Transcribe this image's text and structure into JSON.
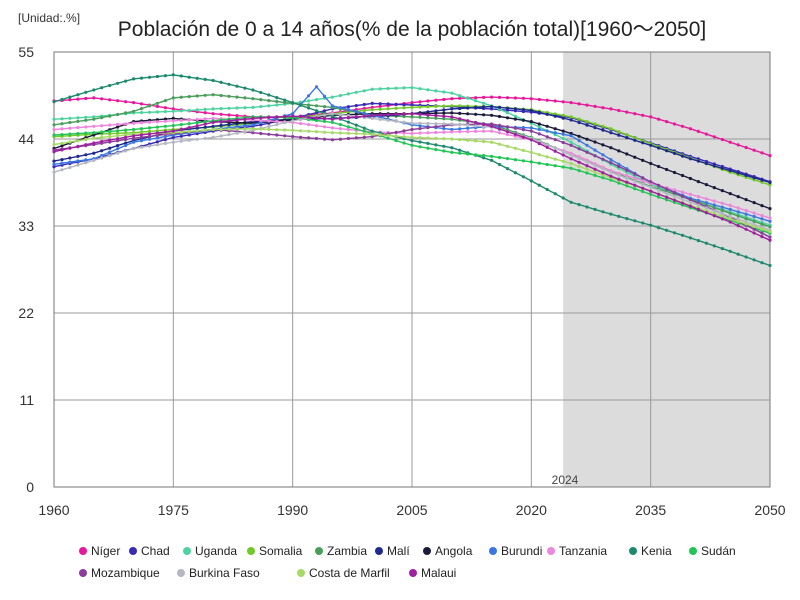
{
  "chart_data": {
    "type": "line",
    "title": "Población de 0 a 14 años(% de la población total)[1960～2050]",
    "unit_label": "[Unidad:.%]",
    "xlim": [
      1960,
      2050
    ],
    "ylim": [
      0,
      55
    ],
    "x_ticks": [
      "1960",
      "1975",
      "1990",
      "2005",
      "2020",
      "2035",
      "2050"
    ],
    "y_ticks": [
      "0",
      "11",
      "22",
      "33",
      "44",
      "55"
    ],
    "x_tick_values": [
      1960,
      1975,
      1990,
      2005,
      2020,
      2035,
      2050
    ],
    "y_tick_values": [
      0,
      11,
      22,
      33,
      44,
      55
    ],
    "forecast_start": 2024,
    "forecast_label": "2024",
    "legend_position": "bottom",
    "grid": true,
    "series": [
      {
        "name": "Níger",
        "color": "#e6199b",
        "points": [
          [
            1960,
            48.8
          ],
          [
            1965,
            49.2
          ],
          [
            1970,
            48.6
          ],
          [
            1975,
            47.8
          ],
          [
            1980,
            47.2
          ],
          [
            1985,
            46.8
          ],
          [
            1990,
            46.8
          ],
          [
            1995,
            47.3
          ],
          [
            2000,
            48.0
          ],
          [
            2005,
            48.6
          ],
          [
            2010,
            49.1
          ],
          [
            2015,
            49.3
          ],
          [
            2020,
            49.1
          ],
          [
            2025,
            48.6
          ],
          [
            2030,
            47.8
          ],
          [
            2035,
            46.8
          ],
          [
            2040,
            45.3
          ],
          [
            2045,
            43.6
          ],
          [
            2050,
            41.9
          ]
        ]
      },
      {
        "name": "Chad",
        "color": "#3a2ab5",
        "points": [
          [
            1960,
            40.5
          ],
          [
            1965,
            41.5
          ],
          [
            1970,
            42.8
          ],
          [
            1975,
            44.2
          ],
          [
            1980,
            45.0
          ],
          [
            1985,
            45.6
          ],
          [
            1990,
            46.6
          ],
          [
            1995,
            47.8
          ],
          [
            2000,
            48.5
          ],
          [
            2005,
            48.3
          ],
          [
            2010,
            48.1
          ],
          [
            2015,
            47.8
          ],
          [
            2020,
            47.4
          ],
          [
            2025,
            46.7
          ],
          [
            2030,
            45.2
          ],
          [
            2035,
            43.5
          ],
          [
            2040,
            41.8
          ],
          [
            2045,
            40.2
          ],
          [
            2050,
            38.6
          ]
        ]
      },
      {
        "name": "Uganda",
        "color": "#4dd3a0",
        "points": [
          [
            1960,
            46.5
          ],
          [
            1965,
            46.8
          ],
          [
            1970,
            47.3
          ],
          [
            1975,
            47.5
          ],
          [
            1980,
            47.8
          ],
          [
            1985,
            48.0
          ],
          [
            1990,
            48.5
          ],
          [
            1995,
            49.3
          ],
          [
            2000,
            50.3
          ],
          [
            2005,
            50.5
          ],
          [
            2010,
            49.8
          ],
          [
            2015,
            48.2
          ],
          [
            2020,
            46.0
          ],
          [
            2025,
            43.6
          ],
          [
            2030,
            40.8
          ],
          [
            2035,
            38.3
          ],
          [
            2040,
            36.3
          ],
          [
            2045,
            34.8
          ],
          [
            2050,
            33.1
          ]
        ]
      },
      {
        "name": "Somalia",
        "color": "#71c927",
        "points": [
          [
            1960,
            44.3
          ],
          [
            1965,
            44.6
          ],
          [
            1970,
            44.8
          ],
          [
            1975,
            45.2
          ],
          [
            1980,
            45.5
          ],
          [
            1985,
            46.0
          ],
          [
            1990,
            46.6
          ],
          [
            1995,
            47.2
          ],
          [
            2000,
            47.7
          ],
          [
            2005,
            48.0
          ],
          [
            2010,
            48.2
          ],
          [
            2015,
            48.1
          ],
          [
            2020,
            47.7
          ],
          [
            2025,
            46.8
          ],
          [
            2030,
            45.3
          ],
          [
            2035,
            43.4
          ],
          [
            2040,
            41.6
          ],
          [
            2045,
            39.8
          ],
          [
            2050,
            38.2
          ]
        ]
      },
      {
        "name": "Zambia",
        "color": "#4a9e5c",
        "points": [
          [
            1960,
            45.8
          ],
          [
            1965,
            46.5
          ],
          [
            1970,
            47.5
          ],
          [
            1975,
            49.2
          ],
          [
            1980,
            49.6
          ],
          [
            1985,
            49.1
          ],
          [
            1990,
            48.5
          ],
          [
            1995,
            48.0
          ],
          [
            2000,
            47.0
          ],
          [
            2005,
            46.8
          ],
          [
            2010,
            46.5
          ],
          [
            2015,
            45.8
          ],
          [
            2020,
            44.2
          ],
          [
            2025,
            42.0
          ],
          [
            2030,
            39.9
          ],
          [
            2035,
            38.0
          ],
          [
            2040,
            36.4
          ],
          [
            2045,
            34.6
          ],
          [
            2050,
            32.9
          ]
        ]
      },
      {
        "name": "Malí",
        "color": "#1f2a8c",
        "points": [
          [
            1960,
            41.2
          ],
          [
            1965,
            42.2
          ],
          [
            1970,
            43.8
          ],
          [
            1975,
            45.0
          ],
          [
            1980,
            45.6
          ],
          [
            1985,
            46.2
          ],
          [
            1990,
            46.5
          ],
          [
            1995,
            46.6
          ],
          [
            2000,
            46.8
          ],
          [
            2005,
            47.2
          ],
          [
            2010,
            47.8
          ],
          [
            2015,
            48.1
          ],
          [
            2020,
            47.6
          ],
          [
            2025,
            46.4
          ],
          [
            2030,
            44.8
          ],
          [
            2035,
            43.2
          ],
          [
            2040,
            41.5
          ],
          [
            2045,
            40.0
          ],
          [
            2050,
            38.5
          ]
        ]
      },
      {
        "name": "Angola",
        "color": "#1a1a3a",
        "points": [
          [
            1960,
            42.8
          ],
          [
            1965,
            44.5
          ],
          [
            1970,
            46.2
          ],
          [
            1975,
            46.6
          ],
          [
            1980,
            46.2
          ],
          [
            1985,
            46.0
          ],
          [
            1990,
            46.4
          ],
          [
            1995,
            47.0
          ],
          [
            2000,
            47.2
          ],
          [
            2005,
            47.2
          ],
          [
            2010,
            47.3
          ],
          [
            2015,
            47.0
          ],
          [
            2020,
            46.2
          ],
          [
            2025,
            44.7
          ],
          [
            2030,
            42.9
          ],
          [
            2035,
            40.9
          ],
          [
            2040,
            39.0
          ],
          [
            2045,
            37.1
          ],
          [
            2050,
            35.2
          ]
        ]
      },
      {
        "name": "Burundi",
        "color": "#3a78e0",
        "points": [
          [
            1960,
            40.8
          ],
          [
            1965,
            41.5
          ],
          [
            1970,
            43.6
          ],
          [
            1975,
            44.5
          ],
          [
            1980,
            45.2
          ],
          [
            1985,
            45.8
          ],
          [
            1990,
            47.2
          ],
          [
            1993,
            50.6
          ],
          [
            1995,
            48.2
          ],
          [
            2000,
            47.0
          ],
          [
            2005,
            45.8
          ],
          [
            2010,
            45.2
          ],
          [
            2015,
            45.6
          ],
          [
            2020,
            45.4
          ],
          [
            2025,
            44.4
          ],
          [
            2030,
            41.4
          ],
          [
            2035,
            38.5
          ],
          [
            2040,
            36.5
          ],
          [
            2045,
            35.1
          ],
          [
            2050,
            33.6
          ]
        ]
      },
      {
        "name": "Tanzania",
        "color": "#ef86dd",
        "points": [
          [
            1960,
            45.2
          ],
          [
            1965,
            45.6
          ],
          [
            1970,
            46.0
          ],
          [
            1975,
            46.3
          ],
          [
            1980,
            46.6
          ],
          [
            1985,
            46.4
          ],
          [
            1990,
            46.1
          ],
          [
            1995,
            45.4
          ],
          [
            2000,
            44.9
          ],
          [
            2005,
            44.7
          ],
          [
            2010,
            44.9
          ],
          [
            2015,
            45.0
          ],
          [
            2020,
            43.9
          ],
          [
            2025,
            42.2
          ],
          [
            2030,
            40.0
          ],
          [
            2035,
            38.4
          ],
          [
            2040,
            37.0
          ],
          [
            2045,
            35.6
          ],
          [
            2050,
            34.0
          ]
        ]
      },
      {
        "name": "Kenia",
        "color": "#1d8a6e",
        "points": [
          [
            1960,
            48.7
          ],
          [
            1965,
            50.2
          ],
          [
            1970,
            51.6
          ],
          [
            1975,
            52.1
          ],
          [
            1980,
            51.4
          ],
          [
            1985,
            50.2
          ],
          [
            1990,
            48.6
          ],
          [
            1995,
            46.9
          ],
          [
            2000,
            45.0
          ],
          [
            2005,
            43.8
          ],
          [
            2010,
            42.9
          ],
          [
            2015,
            41.3
          ],
          [
            2020,
            38.7
          ],
          [
            2025,
            36.0
          ],
          [
            2030,
            34.5
          ],
          [
            2035,
            33.1
          ],
          [
            2040,
            31.5
          ],
          [
            2045,
            29.8
          ],
          [
            2050,
            28.0
          ]
        ]
      },
      {
        "name": "Sudán",
        "color": "#22c455",
        "points": [
          [
            1960,
            44.5
          ],
          [
            1965,
            44.8
          ],
          [
            1970,
            45.2
          ],
          [
            1975,
            45.7
          ],
          [
            1980,
            46.3
          ],
          [
            1985,
            46.8
          ],
          [
            1990,
            46.7
          ],
          [
            1995,
            46.1
          ],
          [
            2000,
            44.7
          ],
          [
            2005,
            43.2
          ],
          [
            2010,
            42.3
          ],
          [
            2015,
            41.8
          ],
          [
            2020,
            41.1
          ],
          [
            2025,
            40.3
          ],
          [
            2030,
            38.8
          ],
          [
            2035,
            37.0
          ],
          [
            2040,
            35.3
          ],
          [
            2045,
            33.7
          ],
          [
            2050,
            32.1
          ]
        ]
      },
      {
        "name": "Mozambique",
        "color": "#8a3d9a",
        "points": [
          [
            1960,
            42.6
          ],
          [
            1965,
            43.3
          ],
          [
            1970,
            44.1
          ],
          [
            1975,
            44.7
          ],
          [
            1980,
            45.2
          ],
          [
            1985,
            44.8
          ],
          [
            1990,
            44.3
          ],
          [
            1995,
            43.9
          ],
          [
            2000,
            44.3
          ],
          [
            2005,
            45.2
          ],
          [
            2010,
            45.8
          ],
          [
            2015,
            45.9
          ],
          [
            2020,
            45.0
          ],
          [
            2025,
            43.2
          ],
          [
            2030,
            41.0
          ],
          [
            2035,
            38.6
          ],
          [
            2040,
            36.3
          ],
          [
            2045,
            34.1
          ],
          [
            2050,
            31.6
          ]
        ]
      },
      {
        "name": "Burkina Faso",
        "color": "#b3b8c2",
        "points": [
          [
            1960,
            39.8
          ],
          [
            1965,
            41.3
          ],
          [
            1970,
            42.8
          ],
          [
            1975,
            43.6
          ],
          [
            1980,
            44.2
          ],
          [
            1985,
            45.1
          ],
          [
            1990,
            46.3
          ],
          [
            1995,
            47.2
          ],
          [
            2000,
            46.6
          ],
          [
            2005,
            46.0
          ],
          [
            2010,
            45.9
          ],
          [
            2015,
            45.5
          ],
          [
            2020,
            44.1
          ],
          [
            2025,
            42.0
          ],
          [
            2030,
            39.8
          ],
          [
            2035,
            37.9
          ],
          [
            2040,
            36.0
          ],
          [
            2045,
            34.2
          ],
          [
            2050,
            32.5
          ]
        ]
      },
      {
        "name": "Costa de Marfil",
        "color": "#a6d965",
        "points": [
          [
            1960,
            43.3
          ],
          [
            1965,
            44.1
          ],
          [
            1970,
            44.6
          ],
          [
            1975,
            44.8
          ],
          [
            1980,
            45.2
          ],
          [
            1985,
            45.3
          ],
          [
            1990,
            45.1
          ],
          [
            1995,
            44.8
          ],
          [
            2000,
            44.6
          ],
          [
            2005,
            44.2
          ],
          [
            2010,
            44.0
          ],
          [
            2015,
            43.6
          ],
          [
            2020,
            42.3
          ],
          [
            2025,
            40.9
          ],
          [
            2030,
            39.1
          ],
          [
            2035,
            37.4
          ],
          [
            2040,
            35.6
          ],
          [
            2045,
            33.9
          ],
          [
            2050,
            32.3
          ]
        ]
      },
      {
        "name": "Malaui",
        "color": "#a021a0",
        "points": [
          [
            1960,
            42.4
          ],
          [
            1965,
            43.5
          ],
          [
            1970,
            44.4
          ],
          [
            1975,
            45.0
          ],
          [
            1980,
            46.1
          ],
          [
            1985,
            46.6
          ],
          [
            1990,
            46.9
          ],
          [
            1995,
            46.5
          ],
          [
            2000,
            47.0
          ],
          [
            2005,
            47.2
          ],
          [
            2010,
            46.8
          ],
          [
            2015,
            45.6
          ],
          [
            2020,
            43.9
          ],
          [
            2025,
            41.5
          ],
          [
            2030,
            39.3
          ],
          [
            2035,
            37.4
          ],
          [
            2040,
            35.5
          ],
          [
            2045,
            33.5
          ],
          [
            2050,
            31.2
          ]
        ]
      }
    ]
  }
}
